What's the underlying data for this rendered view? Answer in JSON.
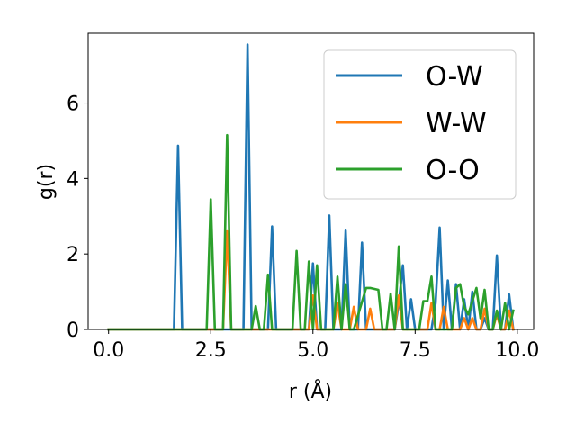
{
  "chart_data": {
    "type": "line",
    "xlabel": "r (Å)",
    "ylabel": "g(r)",
    "xlim": [
      -0.5,
      10.4
    ],
    "ylim": [
      0,
      7.85
    ],
    "xticks": [
      0.0,
      2.5,
      5.0,
      7.5,
      10.0
    ],
    "xtick_labels": [
      "0.0",
      "2.5",
      "5.0",
      "7.5",
      "10.0"
    ],
    "yticks": [
      0,
      2,
      4,
      6
    ],
    "ytick_labels": [
      "0",
      "2",
      "4",
      "6"
    ],
    "grid": false,
    "legend_position": "top-right",
    "series": [
      {
        "name": "O-W",
        "color": "#1f77b4",
        "x": [
          0.0,
          1.6,
          1.7,
          1.8,
          3.3,
          3.4,
          3.5,
          3.9,
          4.0,
          4.1,
          4.9,
          5.0,
          5.1,
          5.3,
          5.4,
          5.5,
          5.7,
          5.8,
          5.9,
          6.1,
          6.2,
          6.3,
          7.0,
          7.1,
          7.2,
          7.3,
          7.4,
          7.5,
          7.9,
          8.0,
          8.1,
          8.2,
          8.3,
          8.4,
          8.5,
          8.6,
          8.7,
          8.8,
          8.9,
          9.0,
          9.1,
          9.2,
          9.3,
          9.4,
          9.5,
          9.6,
          9.7,
          9.8,
          9.9
        ],
        "y": [
          0.0,
          0.0,
          4.87,
          0.0,
          0.0,
          7.55,
          0.0,
          0.0,
          2.73,
          0.0,
          0.0,
          1.75,
          0.0,
          0.0,
          3.02,
          0.0,
          0.0,
          2.62,
          0.0,
          0.0,
          2.3,
          0.0,
          0.0,
          0.7,
          1.7,
          0.0,
          0.8,
          0.0,
          0.0,
          0.7,
          2.7,
          0.0,
          1.3,
          0.0,
          1.2,
          0.0,
          0.8,
          0.0,
          1.0,
          0.0,
          0.0,
          0.3,
          0.0,
          0.0,
          1.96,
          0.0,
          0.0,
          0.93,
          0.0
        ]
      },
      {
        "name": "W-W",
        "color": "#ff7f0e",
        "x": [
          0.0,
          2.8,
          2.9,
          3.0,
          4.9,
          5.0,
          5.1,
          5.5,
          5.6,
          5.7,
          5.9,
          6.0,
          6.1,
          6.3,
          6.4,
          6.5,
          7.0,
          7.1,
          7.2,
          7.8,
          7.9,
          8.0,
          8.1,
          8.2,
          8.3,
          8.6,
          8.7,
          8.8,
          8.9,
          9.0,
          9.1,
          9.2,
          9.3,
          9.4,
          9.5,
          9.6,
          9.7,
          9.8,
          9.9
        ],
        "y": [
          0.0,
          0.0,
          2.6,
          0.0,
          0.0,
          0.9,
          0.0,
          0.0,
          0.7,
          0.0,
          0.0,
          0.6,
          0.0,
          0.0,
          0.55,
          0.0,
          0.0,
          0.9,
          0.0,
          0.0,
          0.7,
          0.0,
          0.0,
          0.6,
          0.0,
          0.0,
          0.3,
          0.0,
          0.3,
          0.0,
          0.0,
          0.55,
          0.0,
          0.0,
          0.4,
          0.0,
          0.0,
          0.5,
          0.0
        ]
      },
      {
        "name": "O-O",
        "color": "#2ca02c",
        "x": [
          0.0,
          2.4,
          2.5,
          2.6,
          2.8,
          2.9,
          3.0,
          3.5,
          3.6,
          3.7,
          3.8,
          3.9,
          4.0,
          4.5,
          4.6,
          4.7,
          4.8,
          4.9,
          5.0,
          5.1,
          5.2,
          5.3,
          5.5,
          5.6,
          5.7,
          5.8,
          5.9,
          6.0,
          6.3,
          6.4,
          6.6,
          6.7,
          6.8,
          6.9,
          7.0,
          7.1,
          7.2,
          7.3,
          7.6,
          7.7,
          7.8,
          7.9,
          8.0,
          8.1,
          8.3,
          8.4,
          8.5,
          8.6,
          8.7,
          8.8,
          9.0,
          9.1,
          9.2,
          9.3,
          9.4,
          9.5,
          9.6,
          9.7,
          9.8,
          9.9
        ],
        "y": [
          0.0,
          0.0,
          3.45,
          0.0,
          0.0,
          5.15,
          0.0,
          0.0,
          0.62,
          0.0,
          0.0,
          1.45,
          0.0,
          0.0,
          2.08,
          0.0,
          0.0,
          1.8,
          0.0,
          1.7,
          0.0,
          0.0,
          0.0,
          1.4,
          0.0,
          1.2,
          0.0,
          0.0,
          1.1,
          1.1,
          1.05,
          0.0,
          0.0,
          0.95,
          0.0,
          2.2,
          0.0,
          0.0,
          0.0,
          0.75,
          0.75,
          1.4,
          0.0,
          0.0,
          0.0,
          0.0,
          1.1,
          1.2,
          0.6,
          0.4,
          1.1,
          0.3,
          1.05,
          0.0,
          0.0,
          0.5,
          0.0,
          0.7,
          0.0,
          0.5
        ]
      }
    ]
  }
}
